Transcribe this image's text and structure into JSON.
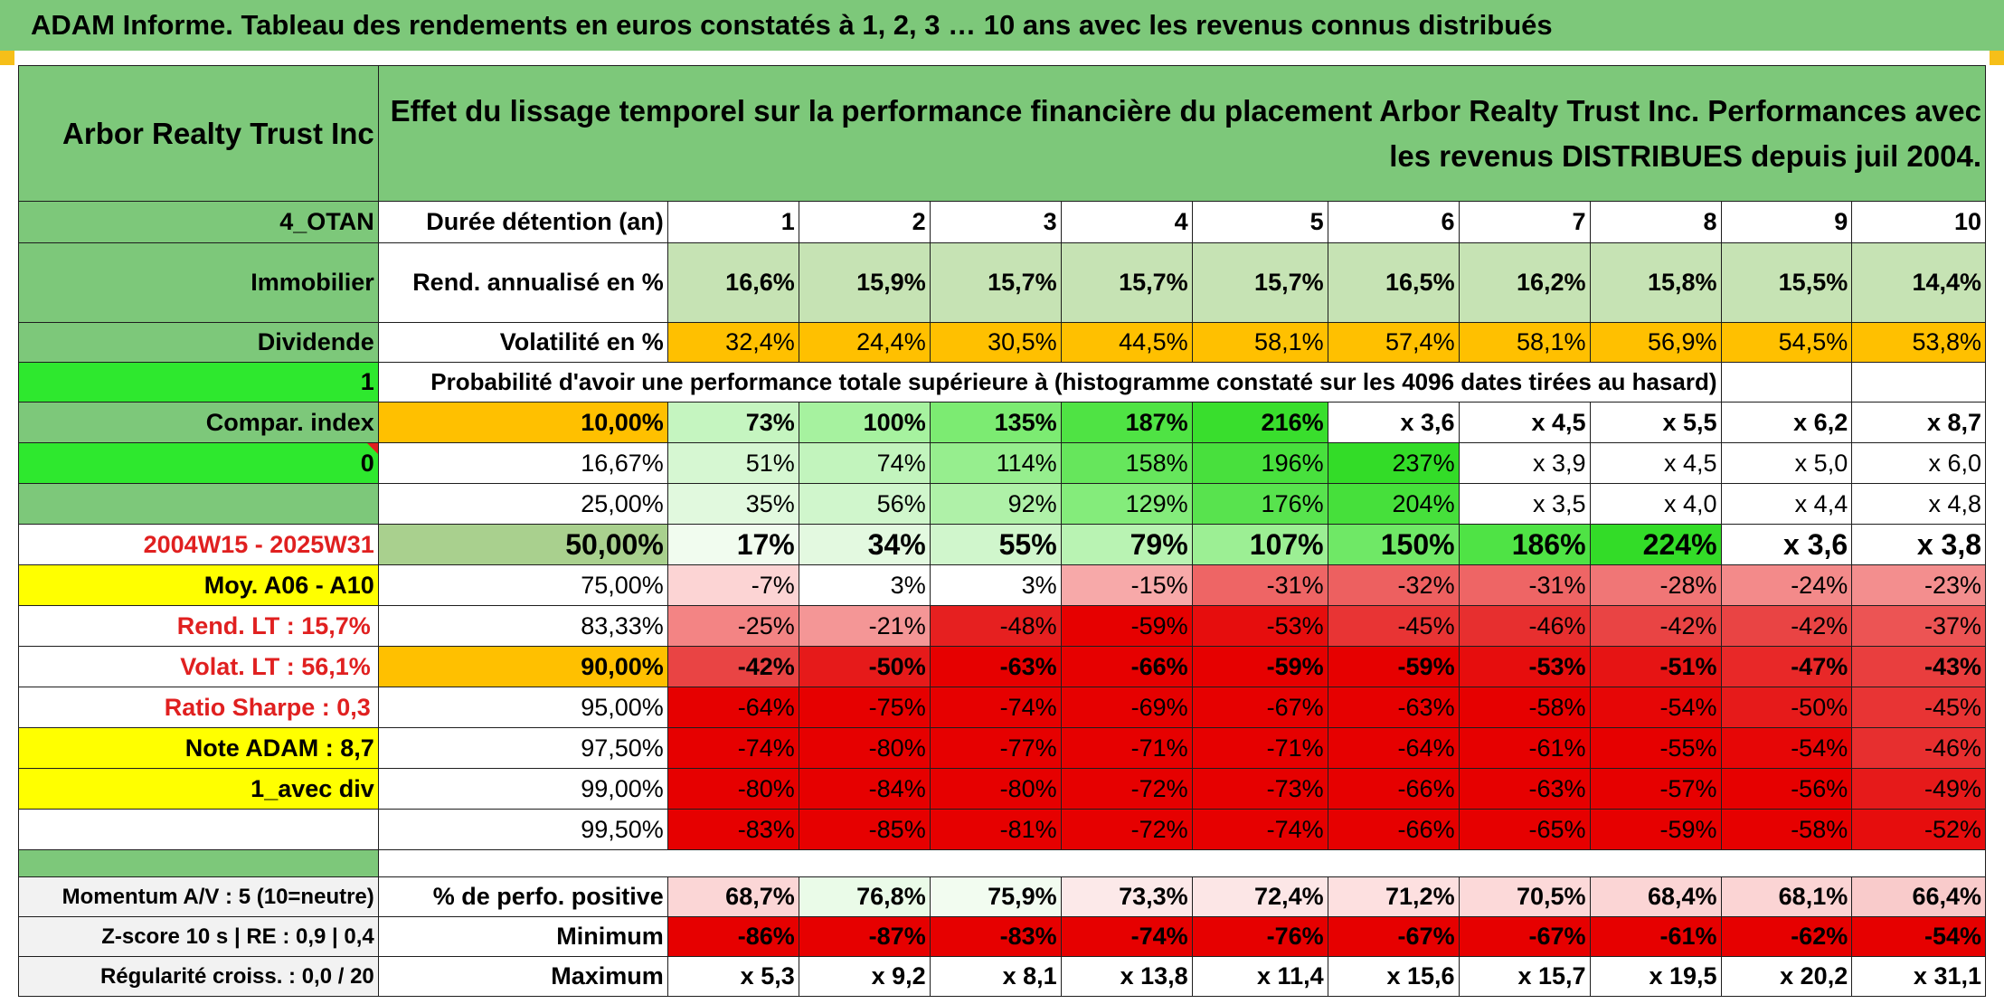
{
  "title": "ADAM Informe. Tableau des rendements en euros constatés à 1, 2, 3 … 10 ans avec les revenus connus distribués",
  "left_panel": {
    "name": "Arbor Realty Trust Inc",
    "code": "4_OTAN",
    "sector": "Immobilier",
    "type": "Dividende",
    "flag1": "1",
    "compar_index": "Compar. index",
    "flag0": "0",
    "period": "2004W15 - 2025W31",
    "moy": "Moy. A06 - A10",
    "rend_lt": "Rend. LT :    15,7%",
    "volat_lt": "Volat. LT :    56,1%",
    "sharpe": "Ratio Sharpe :    0,3",
    "note": "Note ADAM : 8,7",
    "avec_div": "1_avec div",
    "momentum": "Momentum A/V : 5 (10=neutre)",
    "zscore": "Z-score 10 s | RE : 0,9 | 0,4",
    "regularite": "Régularité croiss. : 0,0 / 20"
  },
  "description": "Effet du lissage temporel sur la performance financière du placement Arbor Realty Trust Inc. Performances avec les revenus DISTRIBUES depuis juil 2004.",
  "labels": {
    "duree": "Durée détention (an)",
    "rend": "Rend. annualisé en %",
    "vol": "Volatilité en %",
    "proba": "Probabilité d'avoir une performance totale supérieure à (histogramme constaté sur les 4096 dates tirées au hasard)",
    "positive": "% de perfo. positive",
    "minimum": "Minimum",
    "maximum": "Maximum"
  },
  "years": [
    "1",
    "2",
    "3",
    "4",
    "5",
    "6",
    "7",
    "8",
    "9",
    "10"
  ],
  "rend": [
    "16,6%",
    "15,9%",
    "15,7%",
    "15,7%",
    "15,7%",
    "16,5%",
    "16,2%",
    "15,8%",
    "15,5%",
    "14,4%"
  ],
  "vol": [
    "32,4%",
    "24,4%",
    "30,5%",
    "44,5%",
    "58,1%",
    "57,4%",
    "58,1%",
    "56,9%",
    "54,5%",
    "53,8%"
  ],
  "quantiles": [
    {
      "p": "10,00%",
      "v": [
        "73%",
        "100%",
        "135%",
        "187%",
        "216%",
        "x 3,6",
        "x 4,5",
        "x 5,5",
        "x 6,2",
        "x 8,7"
      ],
      "c": [
        "#c5f5c0",
        "#a6f29f",
        "#7ceb72",
        "#4fe344",
        "#39de2d",
        "#ffffff",
        "#ffffff",
        "#ffffff",
        "#ffffff",
        "#ffffff"
      ]
    },
    {
      "p": "16,67%",
      "v": [
        "51%",
        "74%",
        "114%",
        "158%",
        "196%",
        "237%",
        "x 3,9",
        "x 4,5",
        "x 5,0",
        "x 6,0"
      ],
      "c": [
        "#d6f7d2",
        "#c2f4bd",
        "#96ee8e",
        "#66e65c",
        "#48e03d",
        "#33dc28",
        "#ffffff",
        "#ffffff",
        "#ffffff",
        "#ffffff"
      ]
    },
    {
      "p": "25,00%",
      "v": [
        "35%",
        "56%",
        "92%",
        "129%",
        "176%",
        "204%",
        "x 3,5",
        "x 4,0",
        "x 4,4",
        "x 4,8"
      ],
      "c": [
        "#e1f9de",
        "#d0f6cc",
        "#aff1a8",
        "#84ec7b",
        "#58e34e",
        "#46e03b",
        "#ffffff",
        "#ffffff",
        "#ffffff",
        "#ffffff"
      ]
    },
    {
      "p": "50,00%",
      "v": [
        "17%",
        "34%",
        "55%",
        "79%",
        "107%",
        "150%",
        "186%",
        "224%",
        "x 3,6",
        "x 3,8"
      ],
      "c": [
        "#f1fcef",
        "#e3f9e0",
        "#d0f6cc",
        "#b9f3b3",
        "#9cef94",
        "#6fe866",
        "#4fe345",
        "#33dc28",
        "#ffffff",
        "#ffffff"
      ]
    },
    {
      "p": "75,00%",
      "v": [
        "-7%",
        "3%",
        "3%",
        "-15%",
        "-31%",
        "-32%",
        "-31%",
        "-28%",
        "-24%",
        "-23%"
      ],
      "c": [
        "#fcd4d4",
        "#ffffff",
        "#ffffff",
        "#f7a9a9",
        "#ee6565",
        "#ed6060",
        "#ee6565",
        "#f07676",
        "#f38a8a",
        "#f38e8e"
      ]
    },
    {
      "p": "83,33%",
      "v": [
        "-25%",
        "-21%",
        "-48%",
        "-59%",
        "-53%",
        "-45%",
        "-46%",
        "-42%",
        "-42%",
        "-37%"
      ],
      "c": [
        "#f38484",
        "#f49696",
        "#e62020",
        "#e60000",
        "#e60d0d",
        "#e83434",
        "#e72f2f",
        "#e94444",
        "#e94444",
        "#ec5454"
      ]
    },
    {
      "p": "90,00%",
      "v": [
        "-42%",
        "-50%",
        "-63%",
        "-66%",
        "-59%",
        "-59%",
        "-53%",
        "-51%",
        "-47%",
        "-43%"
      ],
      "c": [
        "#e94444",
        "#e61a1a",
        "#e60000",
        "#e60000",
        "#e60000",
        "#e60000",
        "#e60d0d",
        "#e61414",
        "#e82828",
        "#e93e3e"
      ]
    },
    {
      "p": "95,00%",
      "v": [
        "-64%",
        "-75%",
        "-74%",
        "-69%",
        "-67%",
        "-63%",
        "-58%",
        "-54%",
        "-50%",
        "-45%"
      ],
      "c": [
        "#e60000",
        "#e60000",
        "#e60000",
        "#e60000",
        "#e60000",
        "#e60000",
        "#e60000",
        "#e60606",
        "#e61a1a",
        "#e83434"
      ]
    },
    {
      "p": "97,50%",
      "v": [
        "-74%",
        "-80%",
        "-77%",
        "-71%",
        "-71%",
        "-64%",
        "-61%",
        "-55%",
        "-54%",
        "-46%"
      ],
      "c": [
        "#e60000",
        "#e60000",
        "#e60000",
        "#e60000",
        "#e60000",
        "#e60000",
        "#e60000",
        "#e60000",
        "#e60606",
        "#e72f2f"
      ]
    },
    {
      "p": "99,00%",
      "v": [
        "-80%",
        "-84%",
        "-80%",
        "-72%",
        "-73%",
        "-66%",
        "-63%",
        "-57%",
        "-56%",
        "-49%"
      ],
      "c": [
        "#e60000",
        "#e60000",
        "#e60000",
        "#e60000",
        "#e60000",
        "#e60000",
        "#e60000",
        "#e60000",
        "#e60000",
        "#e61a1a"
      ]
    },
    {
      "p": "99,50%",
      "v": [
        "-83%",
        "-85%",
        "-81%",
        "-72%",
        "-74%",
        "-66%",
        "-65%",
        "-59%",
        "-58%",
        "-52%"
      ],
      "c": [
        "#e60000",
        "#e60000",
        "#e60000",
        "#e60000",
        "#e60000",
        "#e60000",
        "#e60000",
        "#e60000",
        "#e60000",
        "#e60d0d"
      ]
    }
  ],
  "positive": [
    "68,7%",
    "76,8%",
    "75,9%",
    "73,3%",
    "72,4%",
    "71,2%",
    "70,5%",
    "68,4%",
    "68,1%",
    "66,4%"
  ],
  "positive_colors": [
    "#fbd6d6",
    "#eafbe8",
    "#f2fcf0",
    "#fce9e9",
    "#fce6e6",
    "#fde0e0",
    "#fcd9d9",
    "#fbd5d5",
    "#fbd4d4",
    "#f9cbcb"
  ],
  "minimum": [
    "-86%",
    "-87%",
    "-83%",
    "-74%",
    "-76%",
    "-67%",
    "-67%",
    "-61%",
    "-62%",
    "-54%"
  ],
  "maximum": [
    "x 5,3",
    "x 9,2",
    "x 8,1",
    "x 13,8",
    "x 11,4",
    "x 15,6",
    "x 15,7",
    "x 19,5",
    "x 20,2",
    "x 31,1"
  ],
  "colors": {
    "header_green": "#7dc87a",
    "label_green": "#7dc87a",
    "rend_green": "#c6e3b4",
    "vol_orange": "#ffc000",
    "bright_green": "#2ee82e",
    "yellow": "#ffff00",
    "red_text": "#e02020",
    "gray": "#f2f2f2",
    "mid_green": "#a9d08e"
  }
}
